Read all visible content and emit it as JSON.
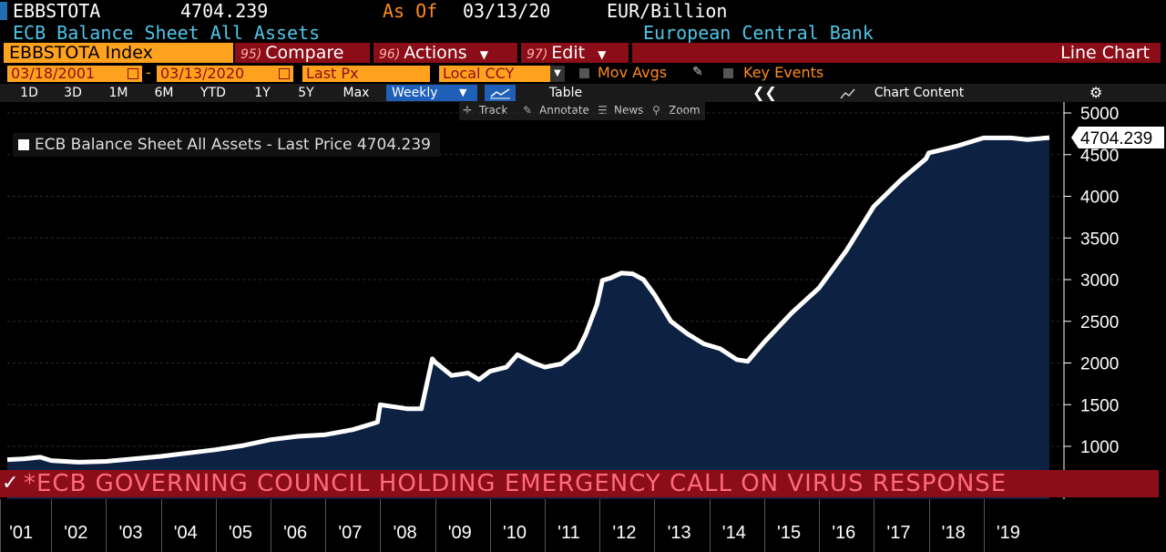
{
  "header": {
    "ticker": "EBBSTOTA",
    "price": "4704.239",
    "as_of_label": "As Of",
    "as_of_date": "03/13/20",
    "units": "EUR/Billion",
    "security_name": "ECB Balance Sheet All Assets",
    "source": "European Central Bank"
  },
  "toolbar": {
    "index_label": "EBBSTOTA Index",
    "compare_num": "95)",
    "compare_label": "Compare",
    "actions_num": "96)",
    "actions_label": "Actions",
    "edit_num": "97)",
    "edit_label": "Edit",
    "chart_type": "Line Chart"
  },
  "controls": {
    "start_date": "03/18/2001",
    "end_date": "03/13/2020",
    "dash": "-",
    "field": "Last Px",
    "currency": "Local CCY",
    "mov_avgs": "Mov Avgs",
    "key_events": "Key Events"
  },
  "periods": [
    "1D",
    "3D",
    "1M",
    "6M",
    "YTD",
    "1Y",
    "5Y",
    "Max"
  ],
  "period_selected": "Weekly",
  "table_label": "Table",
  "chart_content_label": "Chart Content",
  "subtools": {
    "track": "Track",
    "annotate": "Annotate",
    "news": "News",
    "zoom": "Zoom"
  },
  "legend": "ECB Balance Sheet All Assets - Last Price 4704.239",
  "last_value_label": "4704.239",
  "news_banner": "*ECB GOVERNING COUNCIL HOLDING EMERGENCY CALL ON VIRUS RESPONSE",
  "colors": {
    "accent": "#8b0d18",
    "orange": "#ffa21e",
    "fill": "#0d2142",
    "line": "#ffffff"
  },
  "chart_data": {
    "type": "area",
    "title": "ECB Balance Sheet All Assets",
    "ylabel": "",
    "xlabel": "",
    "ylim": [
      750,
      5100
    ],
    "xlim": [
      2001.2,
      2020.2
    ],
    "y_ticks": [
      1000,
      1500,
      2000,
      2500,
      3000,
      3500,
      4000,
      4500,
      5000
    ],
    "x_tick_labels": [
      "'01",
      "'02",
      "'03",
      "'04",
      "'05",
      "'06",
      "'07",
      "'08",
      "'09",
      "'10",
      "'11",
      "'12",
      "'13",
      "'14",
      "'15",
      "'16",
      "'17",
      "'18",
      "'19"
    ],
    "series": [
      {
        "name": "Last Price",
        "x": [
          2001.2,
          2001.5,
          2001.8,
          2002.0,
          2002.5,
          2003.0,
          2003.5,
          2004.0,
          2004.5,
          2005.0,
          2005.5,
          2006.0,
          2006.5,
          2007.0,
          2007.5,
          2007.95,
          2008.0,
          2008.5,
          2008.75,
          2008.95,
          2009.0,
          2009.3,
          2009.6,
          2009.8,
          2010.0,
          2010.3,
          2010.5,
          2010.8,
          2011.0,
          2011.3,
          2011.6,
          2011.75,
          2011.95,
          2012.05,
          2012.2,
          2012.4,
          2012.6,
          2012.8,
          2013.0,
          2013.3,
          2013.6,
          2013.9,
          2014.2,
          2014.5,
          2014.7,
          2015.0,
          2015.5,
          2016.0,
          2016.5,
          2017.0,
          2017.5,
          2017.95,
          2018.0,
          2018.5,
          2019.0,
          2019.5,
          2019.8,
          2020.2
        ],
        "y": [
          840,
          850,
          870,
          830,
          810,
          820,
          850,
          880,
          920,
          960,
          1010,
          1080,
          1120,
          1140,
          1200,
          1290,
          1500,
          1450,
          1450,
          2050,
          2010,
          1850,
          1880,
          1800,
          1900,
          1950,
          2100,
          2000,
          1950,
          1990,
          2150,
          2350,
          2700,
          2990,
          3020,
          3080,
          3070,
          3000,
          2820,
          2500,
          2350,
          2230,
          2170,
          2040,
          2020,
          2250,
          2600,
          2900,
          3350,
          3880,
          4200,
          4450,
          4520,
          4600,
          4700,
          4700,
          4680,
          4704.239
        ]
      }
    ]
  }
}
